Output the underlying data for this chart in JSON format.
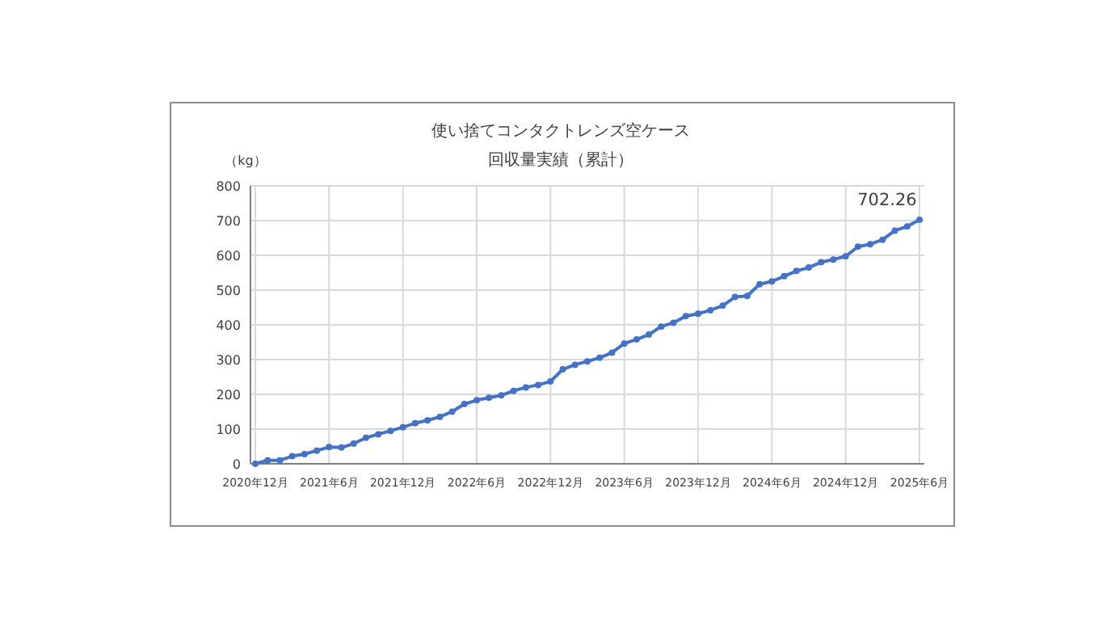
{
  "chart_data": {
    "type": "line",
    "title": "使い捨てコンタクトレンズ空ケース",
    "subtitle": "回収量実績（累計）",
    "ylabel": "（kg）",
    "categories": [
      "2020年12月",
      null,
      null,
      null,
      null,
      null,
      "2021年6月",
      null,
      null,
      null,
      null,
      null,
      "2021年12月",
      null,
      null,
      null,
      null,
      null,
      "2022年6月",
      null,
      null,
      null,
      null,
      null,
      "2022年12月",
      null,
      null,
      null,
      null,
      null,
      "2023年6月",
      null,
      null,
      null,
      null,
      null,
      "2023年12月",
      null,
      null,
      null,
      null,
      null,
      "2024年6月",
      null,
      null,
      null,
      null,
      null,
      "2024年12月",
      null,
      null,
      null,
      null,
      null,
      "2025年6月"
    ],
    "series": [
      {
        "color": "#4472c4",
        "values": [
          0,
          10,
          10,
          22,
          28,
          38,
          48,
          47,
          58,
          75,
          85,
          95,
          105,
          117,
          125,
          135,
          150,
          172,
          183,
          190,
          197,
          210,
          220,
          227,
          237,
          272,
          285,
          295,
          305,
          320,
          346,
          358,
          372,
          395,
          406,
          425,
          432,
          442,
          455,
          480,
          483,
          517,
          525,
          540,
          555,
          565,
          580,
          588,
          597,
          625,
          632,
          645,
          671,
          683,
          702.26
        ],
        "value_labels": [
          null,
          null,
          null,
          null,
          null,
          null,
          null,
          null,
          null,
          null,
          null,
          null,
          null,
          null,
          null,
          null,
          null,
          null,
          null,
          null,
          null,
          null,
          null,
          null,
          null,
          null,
          null,
          null,
          null,
          null,
          null,
          null,
          null,
          null,
          null,
          null,
          null,
          null,
          null,
          null,
          null,
          null,
          null,
          null,
          null,
          null,
          null,
          null,
          null,
          null,
          null,
          null,
          null,
          null,
          "702.26"
        ]
      }
    ],
    "ylim": [
      0,
      800
    ],
    "yticks": [
      0,
      100,
      200,
      300,
      400,
      500,
      600,
      700,
      800
    ],
    "grid": true,
    "marker": "circle",
    "line_style": "solid"
  }
}
